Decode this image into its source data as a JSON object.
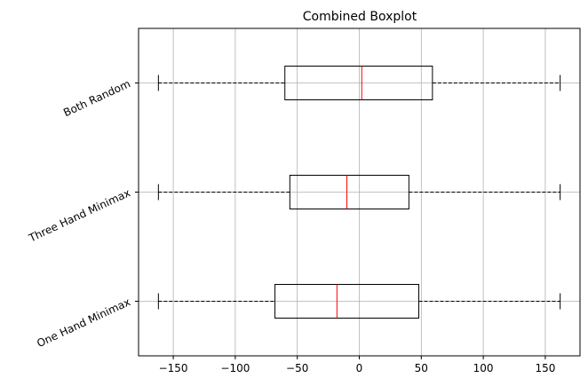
{
  "chart_data": {
    "type": "boxplot",
    "orientation": "horizontal",
    "title": "Combined Boxplot",
    "xlabel": "",
    "ylabel": "",
    "xlim": [
      -178,
      178
    ],
    "xticks": [
      -150,
      -100,
      -50,
      0,
      50,
      100,
      150
    ],
    "xtick_labels": [
      "−150",
      "−100",
      "−50",
      "0",
      "50",
      "100",
      "150"
    ],
    "grid": true,
    "categories": [
      "One Hand Minimax",
      "Three Hand Minimax",
      "Both Random"
    ],
    "boxes": [
      {
        "label": "One Hand Minimax",
        "whisker_low": -162,
        "q1": -68,
        "median": -18,
        "q3": 48,
        "whisker_high": 162
      },
      {
        "label": "Three Hand Minimax",
        "whisker_low": -162,
        "q1": -56,
        "median": -10,
        "q3": 40,
        "whisker_high": 162
      },
      {
        "label": "Both Random",
        "whisker_low": -162,
        "q1": -60,
        "median": 2,
        "q3": 59,
        "whisker_high": 162
      }
    ],
    "colors": {
      "box": "#000000",
      "median": "#ff0000",
      "whisker": "#000000",
      "grid": "#b0b0b0"
    }
  }
}
